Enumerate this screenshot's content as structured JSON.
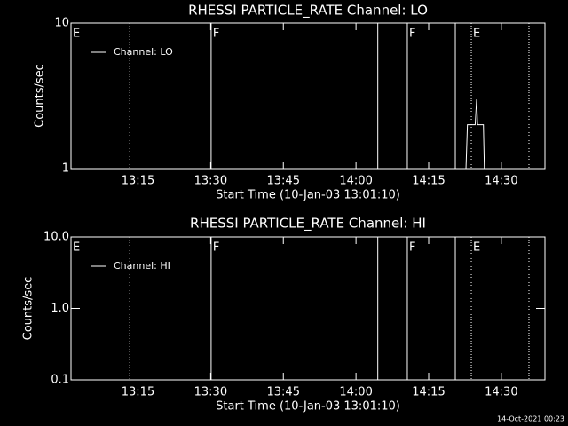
{
  "chart_data": [
    {
      "type": "line",
      "title": "RHESSI PARTICLE_RATE Channel: LO",
      "xlabel": "Start Time (10-Jan-03 13:01:10)",
      "ylabel": "Counts/sec",
      "xlim": [
        781.17,
        879
      ],
      "xticks": [
        {
          "value": 795,
          "label": "13:15"
        },
        {
          "value": 810,
          "label": "13:30"
        },
        {
          "value": 825,
          "label": "13:45"
        },
        {
          "value": 840,
          "label": "14:00"
        },
        {
          "value": 855,
          "label": "14:15"
        },
        {
          "value": 870,
          "label": "14:30"
        }
      ],
      "ylim": [
        1,
        10
      ],
      "yticks": [
        1,
        10
      ],
      "log_y": true,
      "series": [
        {
          "name": "Channel: LO",
          "color": "#ffffff",
          "x": [
            862.7,
            863.0,
            864.6,
            864.9,
            865.1,
            865.4,
            866.3,
            866.5
          ],
          "values": [
            1,
            2,
            2,
            3,
            2,
            2,
            2,
            1
          ]
        }
      ],
      "markers": [
        {
          "x": 781.17,
          "style": "solid",
          "label": "E"
        },
        {
          "x": 793.3,
          "style": "dotted"
        },
        {
          "x": 810.1,
          "style": "solid",
          "label": "F"
        },
        {
          "x": 844.5,
          "style": "solid"
        },
        {
          "x": 850.6,
          "style": "solid",
          "label": "F"
        },
        {
          "x": 860.5,
          "style": "solid"
        },
        {
          "x": 863.8,
          "style": "dotted",
          "label": "E"
        },
        {
          "x": 875.7,
          "style": "dotted"
        }
      ]
    },
    {
      "type": "line",
      "title": "RHESSI PARTICLE_RATE Channel: HI",
      "xlabel": "Start Time (10-Jan-03 13:01:10)",
      "ylabel": "Counts/sec",
      "xlim": [
        781.17,
        879
      ],
      "xticks": [
        {
          "value": 795,
          "label": "13:15"
        },
        {
          "value": 810,
          "label": "13:30"
        },
        {
          "value": 825,
          "label": "13:45"
        },
        {
          "value": 840,
          "label": "14:00"
        },
        {
          "value": 855,
          "label": "14:15"
        },
        {
          "value": 870,
          "label": "14:30"
        }
      ],
      "ylim": [
        0.1,
        10
      ],
      "yticks": [
        0.1,
        {
          "value": 1,
          "label": "1.0"
        },
        {
          "value": 10,
          "label": "10.0"
        }
      ],
      "log_y": true,
      "series": [
        {
          "name": "Channel: HI",
          "color": "#ffffff",
          "x": [],
          "values": []
        }
      ],
      "markers": [
        {
          "x": 781.17,
          "style": "solid",
          "label": "E"
        },
        {
          "x": 793.3,
          "style": "dotted"
        },
        {
          "x": 810.1,
          "style": "solid",
          "label": "F"
        },
        {
          "x": 844.5,
          "style": "solid"
        },
        {
          "x": 850.6,
          "style": "solid",
          "label": "F"
        },
        {
          "x": 860.5,
          "style": "solid"
        },
        {
          "x": 863.8,
          "style": "dotted",
          "label": "E"
        },
        {
          "x": 875.7,
          "style": "dotted"
        }
      ]
    }
  ],
  "timestamp": "14-Oct-2021 00:23"
}
